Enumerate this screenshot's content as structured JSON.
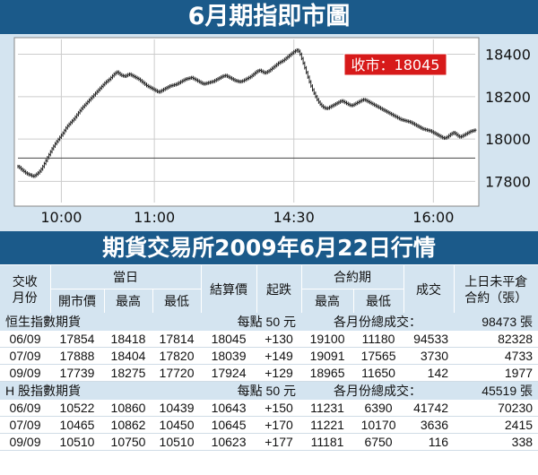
{
  "title": "6月期指即市圖",
  "chart_data": {
    "type": "line",
    "title": "6月期指即市圖",
    "close_label": "收市：18045",
    "ylim": [
      17700,
      18470
    ],
    "y_ticks": [
      17800,
      18000,
      18200,
      18400
    ],
    "x_ticks": [
      "10:00",
      "11:00",
      "14:30",
      "16:00"
    ],
    "x_tick_index": [
      28,
      88,
      178,
      268
    ],
    "reference_level": 17910,
    "grid": true,
    "series": [
      {
        "values": [
          17870,
          17865,
          17858,
          17852,
          17846,
          17840,
          17836,
          17832,
          17830,
          17826,
          17824,
          17828,
          17834,
          17840,
          17848,
          17858,
          17870,
          17884,
          17898,
          17912,
          17926,
          17940,
          17954,
          17966,
          17978,
          17988,
          17998,
          18008,
          18018,
          18028,
          18040,
          18052,
          18062,
          18070,
          18078,
          18086,
          18094,
          18104,
          18114,
          18124,
          18134,
          18144,
          18152,
          18160,
          18168,
          18176,
          18184,
          18192,
          18200,
          18208,
          18216,
          18224,
          18232,
          18240,
          18248,
          18256,
          18264,
          18270,
          18276,
          18282,
          18290,
          18298,
          18306,
          18312,
          18316,
          18310,
          18304,
          18300,
          18298,
          18296,
          18300,
          18304,
          18306,
          18302,
          18298,
          18294,
          18290,
          18286,
          18282,
          18276,
          18270,
          18264,
          18258,
          18252,
          18248,
          18244,
          18240,
          18236,
          18232,
          18228,
          18224,
          18222,
          18226,
          18230,
          18234,
          18238,
          18242,
          18246,
          18250,
          18252,
          18254,
          18256,
          18258,
          18262,
          18266,
          18270,
          18274,
          18278,
          18282,
          18284,
          18286,
          18288,
          18290,
          18286,
          18282,
          18278,
          18274,
          18270,
          18266,
          18262,
          18260,
          18262,
          18264,
          18266,
          18268,
          18270,
          18272,
          18276,
          18280,
          18284,
          18288,
          18292,
          18296,
          18298,
          18300,
          18296,
          18292,
          18288,
          18284,
          18280,
          18276,
          18274,
          18272,
          18270,
          18272,
          18274,
          18278,
          18282,
          18286,
          18290,
          18294,
          18300,
          18306,
          18312,
          18318,
          18322,
          18324,
          18320,
          18316,
          18312,
          18314,
          18318,
          18322,
          18328,
          18334,
          18340,
          18346,
          18352,
          18358,
          18362,
          18366,
          18370,
          18376,
          18382,
          18388,
          18394,
          18400,
          18406,
          18412,
          18416,
          18420,
          18414,
          18400,
          18380,
          18358,
          18336,
          18314,
          18292,
          18270,
          18250,
          18232,
          18216,
          18200,
          18186,
          18174,
          18164,
          18156,
          18150,
          18146,
          18144,
          18146,
          18150,
          18154,
          18158,
          18162,
          18166,
          18170,
          18174,
          18178,
          18180,
          18176,
          18172,
          18168,
          18164,
          18160,
          18158,
          18160,
          18164,
          18168,
          18172,
          18176,
          18180,
          18184,
          18186,
          18184,
          18180,
          18176,
          18172,
          18168,
          18164,
          18160,
          18156,
          18152,
          18148,
          18144,
          18140,
          18136,
          18132,
          18128,
          18124,
          18120,
          18116,
          18112,
          18108,
          18104,
          18100,
          18096,
          18092,
          18090,
          18088,
          18086,
          18084,
          18082,
          18080,
          18076,
          18072,
          18068,
          18064,
          18060,
          18056,
          18052,
          18048,
          18046,
          18044,
          18042,
          18040,
          18038,
          18034,
          18030,
          18026,
          18022,
          18018,
          18014,
          18010,
          18006,
          18004,
          18006,
          18010,
          18016,
          18022,
          18026,
          18030,
          18026,
          18020,
          18014,
          18010,
          18012,
          18016,
          18020,
          18024,
          18028,
          18032,
          18036,
          18038,
          18040,
          18042
        ]
      }
    ]
  },
  "table": {
    "title": "期貨交易所2009年6月22日行情",
    "head": {
      "contract_month": "交收\n月份",
      "same_day": "當日",
      "open": "開市價",
      "high": "最高",
      "low": "最低",
      "settle": "結算價",
      "change": "起跌",
      "contract_period": "合約期",
      "cp_high": "最高",
      "cp_low": "最低",
      "volume": "成交",
      "open_interest": "上日未平倉\n合約（張）"
    },
    "sections": [
      {
        "name": "恒生指數期貨",
        "per_point": "每點 50 元",
        "total_label": "各月份總成交：",
        "total": "98473 張",
        "rows": [
          [
            "06/09",
            "17854",
            "18418",
            "17814",
            "18045",
            "+130",
            "19100",
            "11180",
            "94533",
            "82328"
          ],
          [
            "07/09",
            "17888",
            "18404",
            "17820",
            "18039",
            "+149",
            "19091",
            "17565",
            "3730",
            "4733"
          ],
          [
            "09/09",
            "17739",
            "18275",
            "17720",
            "17924",
            "+129",
            "18965",
            "11650",
            "142",
            "1977"
          ]
        ]
      },
      {
        "name": "H 股指數期貨",
        "per_point": "每點 50 元",
        "total_label": "各月份總成交：",
        "total": "45519 張",
        "rows": [
          [
            "06/09",
            "10522",
            "10860",
            "10439",
            "10643",
            "+150",
            "11231",
            "6390",
            "41742",
            "70230"
          ],
          [
            "07/09",
            "10465",
            "10862",
            "10450",
            "10645",
            "+170",
            "11221",
            "10170",
            "3636",
            "2415"
          ],
          [
            "09/09",
            "10510",
            "10750",
            "10510",
            "10623",
            "+177",
            "11181",
            "6750",
            "116",
            "338"
          ]
        ]
      }
    ]
  }
}
